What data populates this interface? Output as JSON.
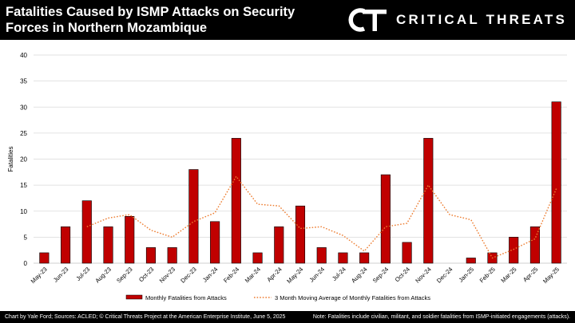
{
  "header": {
    "title": "Fatalities Caused by ISMP Attacks on Security Forces in Northern Mozambique",
    "brand_mark": "CT",
    "brand_name": "CRITICAL THREATS"
  },
  "footer": {
    "source": "Chart by Yale Ford; Sources: ACLED; © Critical Threats Project at the American Enterprise Institute, June 5, 2025",
    "note": "Note: Fatalities include civilian, militant, and soldier fatalities from ISMP-initiated engagements (attacks)."
  },
  "colors": {
    "bar": "#c00000",
    "moving_average": "#ed7d31",
    "gridline": "#d9d9d9",
    "header_bg": "#000000"
  },
  "chart_data": {
    "type": "bar",
    "title": "",
    "xlabel": "",
    "ylabel": "Fatalities",
    "ylim": [
      0,
      40
    ],
    "yticks": [
      0,
      5,
      10,
      15,
      20,
      25,
      30,
      35,
      40
    ],
    "grid": true,
    "legend_position": "bottom",
    "categories": [
      "May-23",
      "Jun-23",
      "Jul-23",
      "Aug-23",
      "Sep-23",
      "Oct-23",
      "Nov-23",
      "Dec-23",
      "Jan-24",
      "Feb-24",
      "Mar-24",
      "Apr-24",
      "May-24",
      "Jun-24",
      "Jul-24",
      "Aug-24",
      "Sep-24",
      "Oct-24",
      "Nov-24",
      "Dec-24",
      "Jan-25",
      "Feb-25",
      "Mar-25",
      "Apr-25",
      "May-25"
    ],
    "series": [
      {
        "name": "Monthly Fatalities from Attacks",
        "type": "bar",
        "values": [
          2,
          7,
          12,
          7,
          9,
          3,
          3,
          18,
          8,
          24,
          2,
          7,
          11,
          3,
          2,
          2,
          17,
          4,
          24,
          0,
          1,
          2,
          5,
          7,
          31
        ]
      },
      {
        "name": "3 Month Moving Average of Monthly Fatalities from Attacks",
        "type": "line",
        "style": "dotted",
        "values": [
          null,
          null,
          7,
          8.67,
          9.33,
          6.33,
          5,
          8,
          9.67,
          16.67,
          11.33,
          11,
          6.67,
          7,
          5.33,
          2.33,
          7,
          7.67,
          15,
          9.33,
          8.33,
          1,
          2.67,
          4.67,
          14.33
        ]
      }
    ]
  }
}
